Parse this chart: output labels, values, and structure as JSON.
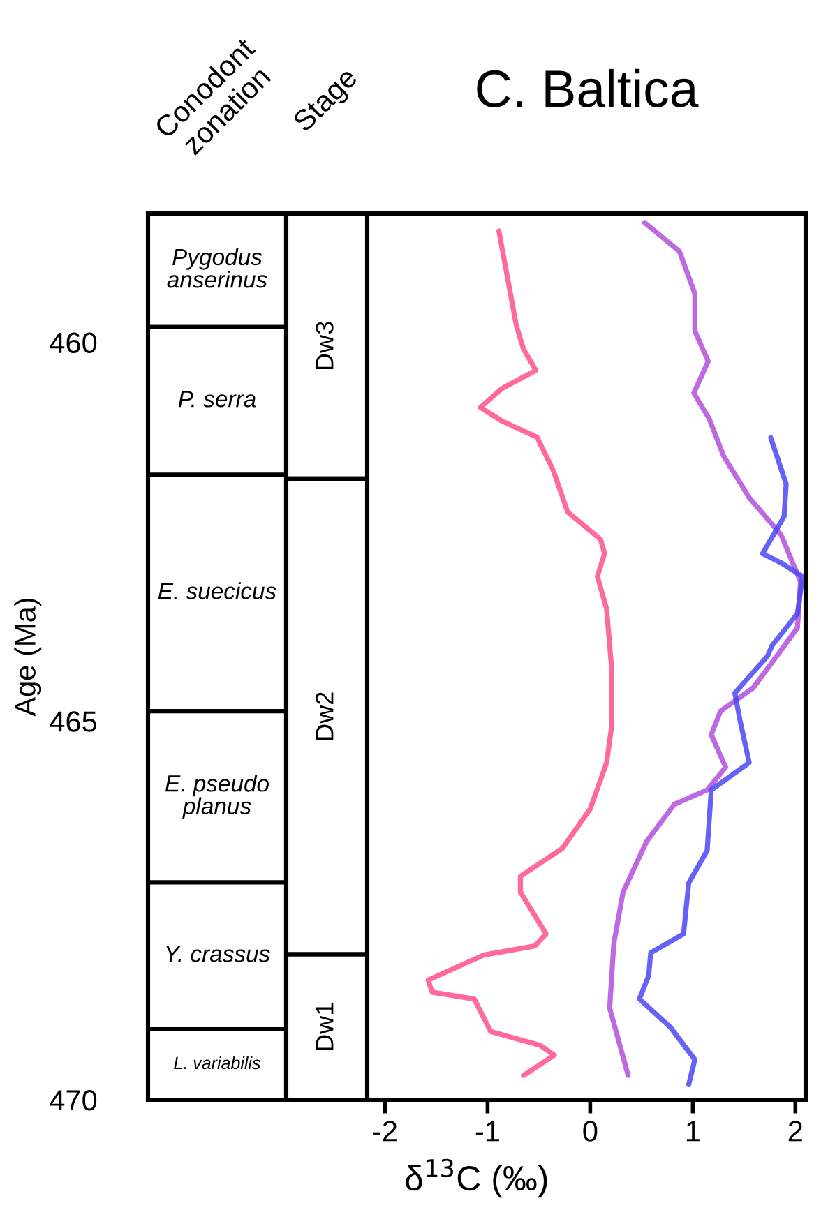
{
  "chart_data": {
    "type": "line",
    "title": "C. Baltica",
    "xlabel": "δ$^{13}$C (‰)",
    "ylabel": "Age (Ma)",
    "xlim": [
      -4.31,
      2.1
    ],
    "xticks": [
      -2,
      -1,
      0,
      1,
      2
    ],
    "ylim": [
      470,
      458.3
    ],
    "yticks": [
      460,
      465,
      470
    ],
    "marker": "none",
    "line_style": "solid",
    "annotations": [
      "Conodont\nzonation",
      "Stage"
    ],
    "bands": [
      {
        "axis": "y",
        "from": 458.3,
        "to": 459.8,
        "label": "Pygodus\nanserinus"
      },
      {
        "axis": "y",
        "from": 459.8,
        "to": 461.75,
        "label": "P. serra"
      },
      {
        "axis": "y",
        "from": 461.75,
        "to": 464.87,
        "label": "E. suecicus"
      },
      {
        "axis": "y",
        "from": 464.87,
        "to": 467.13,
        "label": "E. pseudo\nplanus"
      },
      {
        "axis": "y",
        "from": 467.13,
        "to": 469.07,
        "label": "Y. crassus"
      },
      {
        "axis": "y",
        "from": 469.07,
        "to": 470,
        "label": "L. variabilis"
      },
      {
        "axis": "y",
        "from": 458.3,
        "to": 461.8,
        "label": "Dw3"
      },
      {
        "axis": "y",
        "from": 461.8,
        "to": 468.08,
        "label": "Dw2"
      },
      {
        "axis": "y",
        "from": 468.08,
        "to": 470,
        "label": "Dw1"
      }
    ],
    "series": [
      {
        "color": "#ff4f8b",
        "x": [
          -0.89,
          -0.72,
          -0.65,
          -0.53,
          -0.86,
          -1.07,
          -0.86,
          -0.52,
          -0.36,
          -0.22,
          0.1,
          0.14,
          0.07,
          0.16,
          0.21,
          0.21,
          0.16,
          0.0,
          -0.27,
          -0.68,
          -0.68,
          -0.43,
          -0.54,
          -1.04,
          -1.58,
          -1.54,
          -1.13,
          -0.97,
          -0.49,
          -0.35,
          -0.65
        ],
        "values": [
          458.53,
          459.78,
          460.09,
          460.37,
          460.61,
          460.86,
          461.04,
          461.25,
          461.69,
          462.24,
          462.6,
          462.79,
          463.09,
          463.52,
          464.32,
          465.06,
          465.55,
          466.16,
          466.68,
          467.05,
          467.26,
          467.81,
          467.97,
          468.09,
          468.42,
          468.58,
          468.67,
          469.1,
          469.28,
          469.41,
          469.68
        ]
      },
      {
        "color": "#b24fdc",
        "x": [
          0.53,
          0.87,
          1.02,
          1.02,
          1.15,
          1.01,
          1.16,
          1.3,
          1.55,
          1.86,
          2.05,
          2.02,
          1.82,
          1.59,
          1.27,
          1.18,
          1.32,
          1.14,
          0.82,
          0.55,
          0.32,
          0.23,
          0.19,
          0.37
        ],
        "values": [
          458.42,
          458.8,
          459.36,
          459.85,
          460.25,
          460.67,
          461.01,
          461.5,
          462.05,
          462.54,
          463.16,
          463.77,
          464.14,
          464.56,
          464.87,
          465.18,
          465.61,
          465.91,
          466.1,
          466.59,
          467.26,
          467.94,
          468.79,
          469.68
        ]
      },
      {
        "color": "#4a46f5",
        "x": [
          1.76,
          1.91,
          1.89,
          1.68,
          1.86,
          2.07,
          2.02,
          1.77,
          1.73,
          1.41,
          1.46,
          1.55,
          1.18,
          1.14,
          0.96,
          0.91,
          0.59,
          0.57,
          0.48,
          0.78,
          1.02,
          0.96
        ],
        "values": [
          461.26,
          461.87,
          462.3,
          462.79,
          462.91,
          463.09,
          463.58,
          464.01,
          464.14,
          464.63,
          464.99,
          465.55,
          465.91,
          466.71,
          467.14,
          467.81,
          468.06,
          468.36,
          468.67,
          469.04,
          469.47,
          469.8
        ]
      }
    ]
  }
}
